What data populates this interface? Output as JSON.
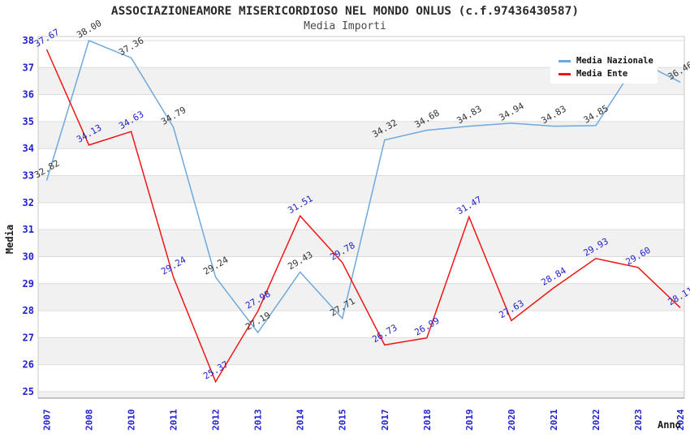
{
  "chart_data": {
    "type": "line",
    "title": "ASSOCIAZIONEAMORE MISERICORDIOSO NEL MONDO ONLUS (c.f.97436430587)",
    "subtitle": "Media Importi",
    "xlabel": "Anno",
    "ylabel": "Media",
    "ylim": [
      25,
      38
    ],
    "y_ticks": [
      38,
      37,
      36,
      35,
      34,
      33,
      32,
      31,
      30,
      29,
      28,
      27,
      26,
      25
    ],
    "categories": [
      "2007",
      "2008",
      "2010",
      "2011",
      "2012",
      "2013",
      "2014",
      "2015",
      "2017",
      "2018",
      "2019",
      "2020",
      "2021",
      "2022",
      "2023",
      "2024"
    ],
    "series": [
      {
        "name": "Media Nazionale",
        "color": "#6FA8DC",
        "label_color": "#333333",
        "values": [
          32.82,
          38.0,
          37.36,
          34.79,
          29.24,
          27.19,
          29.43,
          27.71,
          34.32,
          34.68,
          34.83,
          34.94,
          34.83,
          34.85,
          37.25,
          36.46
        ],
        "labels": [
          "32.82",
          "38.00",
          "37.36",
          "34.79",
          "29.24",
          "27.19",
          "29.43",
          "27.71",
          "34.32",
          "34.68",
          "34.83",
          "34.94",
          "34.83",
          "34.85",
          "",
          "36.46"
        ]
      },
      {
        "name": "Media Ente",
        "color": "#F01414",
        "label_color": "#2222CC",
        "values": [
          37.67,
          34.13,
          34.63,
          29.24,
          25.37,
          27.98,
          31.51,
          29.78,
          26.73,
          26.99,
          31.47,
          27.63,
          28.84,
          29.93,
          29.6,
          28.11
        ],
        "labels": [
          "37.67",
          "34.13",
          "34.63",
          "29.24",
          "25.37",
          "27.98",
          "31.51",
          "29.78",
          "26.73",
          "26.99",
          "31.47",
          "27.63",
          "28.84",
          "29.93",
          "29.60",
          "28.11"
        ]
      }
    ],
    "legend": {
      "position": "top-right"
    },
    "grid": true,
    "style": {
      "band_fill": "#F1F1F1",
      "grid_line": "#DCDCDC",
      "plot_border": "#C9C9C9",
      "axis_line": "#8C8C8C",
      "tick_label_color": "#2222CC"
    }
  }
}
